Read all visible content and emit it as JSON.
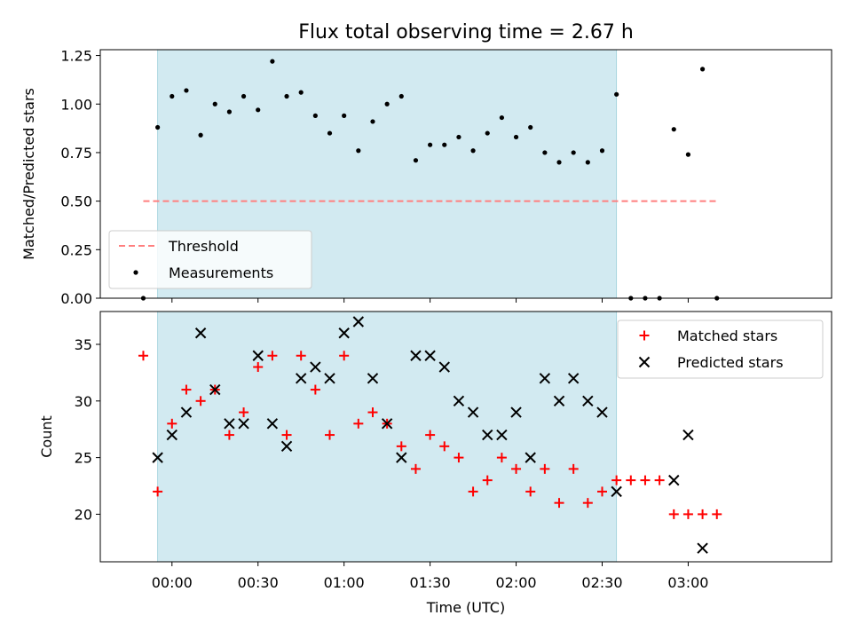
{
  "chart_data": [
    {
      "type": "scatter",
      "title": "Flux total observing time = 2.67 h",
      "xlabel": "",
      "ylabel": "Matched/Predicted stars",
      "xlim_minutes": [
        -25,
        230
      ],
      "ylim": [
        0,
        1.28
      ],
      "yticks": [
        0.0,
        0.25,
        0.5,
        0.75,
        1.0,
        1.25
      ],
      "ytick_labels": [
        "0.00",
        "0.25",
        "0.50",
        "0.75",
        "1.00",
        "1.25"
      ],
      "shaded_interval_minutes": [
        -5,
        155
      ],
      "shade_color": "#add8e6",
      "threshold": {
        "name": "Threshold",
        "value": 0.5,
        "x_minutes": [
          -10,
          190
        ],
        "color": "#ff7f7f"
      },
      "series": [
        {
          "name": "Measurements",
          "color": "#000000",
          "x_minutes": [
            -10,
            -5,
            0,
            5,
            10,
            15,
            20,
            25,
            30,
            35,
            40,
            45,
            50,
            55,
            60,
            65,
            70,
            75,
            80,
            85,
            90,
            95,
            100,
            105,
            110,
            115,
            120,
            125,
            130,
            135,
            140,
            145,
            150,
            155,
            160,
            165,
            170,
            175,
            180,
            185,
            190
          ],
          "values": [
            0.0,
            0.88,
            1.04,
            1.07,
            0.84,
            1.0,
            0.96,
            1.04,
            0.97,
            1.22,
            1.04,
            1.06,
            0.94,
            0.85,
            0.94,
            0.76,
            0.91,
            1.0,
            1.04,
            0.71,
            0.79,
            0.79,
            0.83,
            0.76,
            0.85,
            0.93,
            0.83,
            0.88,
            0.75,
            0.7,
            0.75,
            0.7,
            0.76,
            1.05,
            0.0,
            0.0,
            0.0,
            0.87,
            0.74,
            1.18,
            0.0
          ]
        }
      ],
      "legend": {
        "position": "lower-left",
        "entries": [
          "Threshold",
          "Measurements"
        ]
      }
    },
    {
      "type": "scatter",
      "title": "",
      "xlabel": "Time (UTC)",
      "ylabel": "Count",
      "xlim_minutes": [
        -25,
        230
      ],
      "ylim": [
        15.8,
        37.9
      ],
      "yticks": [
        20,
        25,
        30,
        35
      ],
      "ytick_labels": [
        "20",
        "25",
        "30",
        "35"
      ],
      "xticks_minutes": [
        0,
        30,
        60,
        90,
        120,
        150,
        180
      ],
      "xtick_labels": [
        "00:00",
        "00:30",
        "01:00",
        "01:30",
        "02:00",
        "02:30",
        "03:00"
      ],
      "shaded_interval_minutes": [
        -5,
        155
      ],
      "shade_color": "#add8e6",
      "series": [
        {
          "name": "Matched stars",
          "marker": "plus",
          "color": "#ff0000",
          "x_minutes": [
            -10,
            -5,
            0,
            5,
            10,
            15,
            20,
            25,
            30,
            35,
            40,
            45,
            50,
            55,
            60,
            65,
            70,
            75,
            80,
            85,
            90,
            95,
            100,
            105,
            110,
            115,
            120,
            125,
            130,
            135,
            140,
            145,
            150,
            155,
            160,
            165,
            170,
            175,
            180,
            185,
            190
          ],
          "values": [
            34,
            22,
            28,
            31,
            30,
            31,
            27,
            29,
            33,
            34,
            27,
            34,
            31,
            27,
            34,
            28,
            29,
            28,
            26,
            24,
            27,
            26,
            25,
            22,
            23,
            25,
            24,
            22,
            24,
            21,
            24,
            21,
            22,
            23,
            23,
            23,
            23,
            20,
            20,
            20,
            20
          ]
        },
        {
          "name": "Predicted stars",
          "marker": "x",
          "color": "#000000",
          "x_minutes": [
            -5,
            0,
            5,
            10,
            15,
            20,
            25,
            30,
            35,
            40,
            45,
            50,
            55,
            60,
            65,
            70,
            75,
            80,
            85,
            90,
            95,
            100,
            105,
            110,
            115,
            120,
            125,
            130,
            135,
            140,
            145,
            150,
            155,
            175,
            180,
            185
          ],
          "values": [
            25,
            27,
            29,
            36,
            31,
            28,
            28,
            34,
            28,
            26,
            32,
            33,
            32,
            36,
            37,
            32,
            28,
            25,
            34,
            34,
            33,
            30,
            29,
            27,
            27,
            29,
            25,
            32,
            30,
            32,
            30,
            29,
            22,
            23,
            27,
            17
          ]
        }
      ],
      "legend": {
        "position": "top-right",
        "entries": [
          "Matched stars",
          "Predicted stars"
        ]
      }
    }
  ]
}
